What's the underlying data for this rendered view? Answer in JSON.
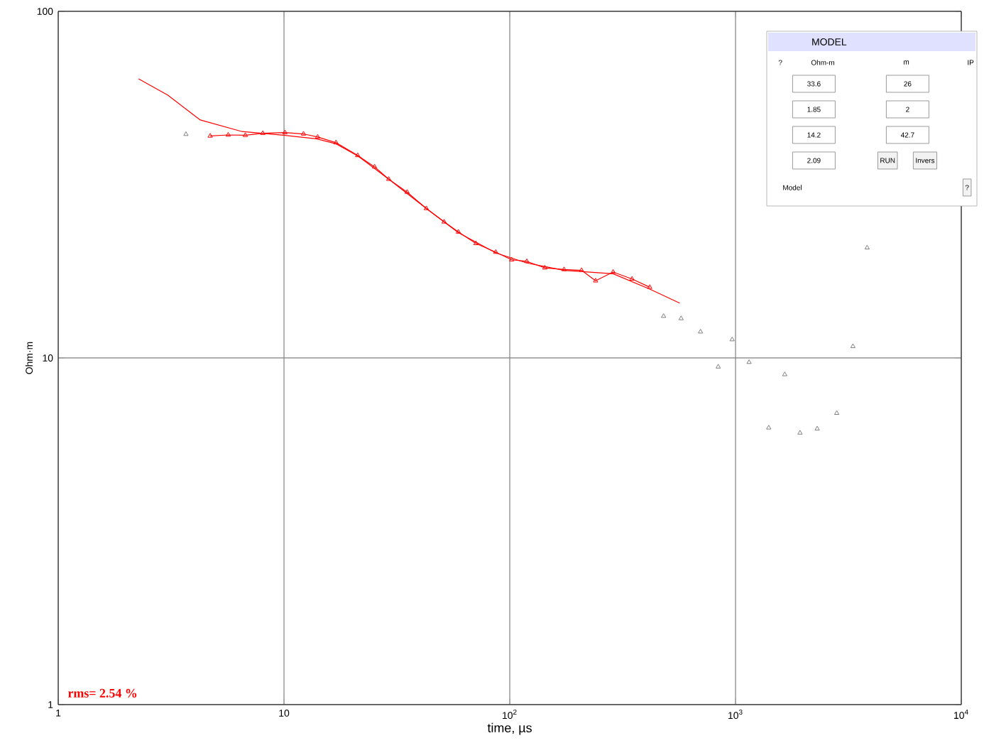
{
  "chart_data": [
    {
      "type": "line",
      "xlabel": "time, µs",
      "ylabel": "Ohm·m",
      "log": "xy",
      "grid": true,
      "xlim": [
        1,
        10000
      ],
      "ylim": [
        1,
        100
      ],
      "xticks": [
        1,
        10,
        {
          "value": 100,
          "label": "10$^{2}$"
        },
        {
          "value": 1000,
          "label": "10$^{3}$"
        },
        {
          "value": 10000,
          "label": "10$^{4}$"
        }
      ],
      "yticks": [
        1,
        10,
        100
      ],
      "annotations": [
        "rms= 2.54 %"
      ],
      "series": [
        {
          "type": "line",
          "marker": "none",
          "color": "#ff0000",
          "x": [
            2.27,
            3.06,
            4.26,
            6.52,
            9.96,
            13.9,
            17,
            21.2,
            29.1,
            42.7,
            59.2,
            86.7,
            119,
            174,
            287,
            417,
            566
          ],
          "values": [
            63.9,
            57.3,
            48.6,
            45,
            43.9,
            42.9,
            41.5,
            38.3,
            32.8,
            27,
            23,
            20.1,
            18.8,
            17.9,
            17.5,
            15.8,
            14.4
          ]
        },
        {
          "type": "line",
          "marker": "triangle",
          "color": "#ff0000",
          "x": [
            4.71,
            5.66,
            6.74,
            8.06,
            10.1,
            12.2,
            14.1,
            17.0,
            21.2,
            25.2,
            29.1,
            35.1,
            42.7,
            51.2,
            59.2,
            70.8,
            86.7,
            102,
            119,
            143,
            174,
            208,
            240,
            287,
            348,
            417
          ],
          "values": [
            43.7,
            44.0,
            43.9,
            44.5,
            44.7,
            44.3,
            43.4,
            41.8,
            38.4,
            35.6,
            32.8,
            30.1,
            27.0,
            24.7,
            23.1,
            21.4,
            20.2,
            19.2,
            19.0,
            18.2,
            18.0,
            17.9,
            16.7,
            17.7,
            16.9,
            16.0
          ]
        },
        {
          "type": "scatter",
          "marker": "triangle",
          "color": "#808080",
          "x": [
            3.68,
            480,
            574,
            700,
            838,
            966,
            1148,
            1403,
            1652,
            1931,
            2300,
            2807,
            3311,
            3828
          ],
          "values": [
            44.2,
            13.2,
            13.0,
            11.9,
            9.43,
            11.3,
            9.72,
            6.29,
            8.96,
            6.08,
            6.25,
            6.93,
            10.8,
            20.8
          ]
        }
      ]
    },
    {
      "type": "other",
      "title": "MODEL",
      "annotations": [
        "?",
        "Ohm-m",
        "m",
        "IP",
        "33.6",
        "26",
        "1.85",
        "2",
        "14.2",
        "42.7",
        "2.09",
        "RUN",
        "Invers",
        "Model",
        "?"
      ]
    }
  ]
}
